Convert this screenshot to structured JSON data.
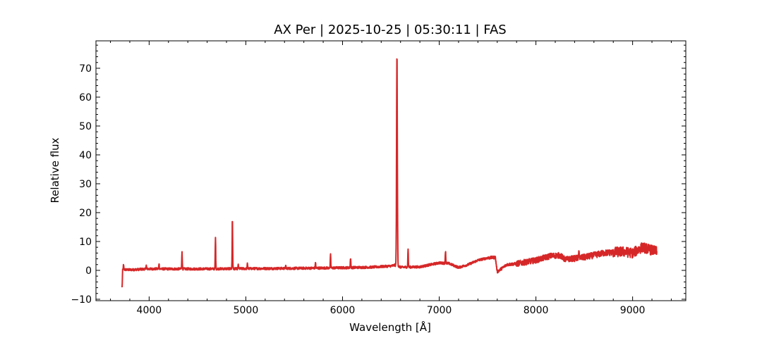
{
  "chart_data": {
    "type": "line",
    "title": "AX Per | 2025-10-25 | 05:30:11 | FAS",
    "xlabel": "Wavelength [Å]",
    "ylabel": "Relative flux",
    "xlim": [
      3450,
      9550
    ],
    "ylim": [
      -10.5,
      79.5
    ],
    "xticks": [
      4000,
      5000,
      6000,
      7000,
      8000,
      9000
    ],
    "yticks": [
      -10,
      0,
      10,
      20,
      30,
      40,
      50,
      60,
      70
    ],
    "xminor_step": 200,
    "yminor_step": 2,
    "grid": false,
    "line_color": "#d62728",
    "series": [
      {
        "name": "",
        "continuum": [
          [
            3720,
            0.3
          ],
          [
            3800,
            0.2
          ],
          [
            4000,
            0.5
          ],
          [
            4500,
            0.5
          ],
          [
            5000,
            0.6
          ],
          [
            5500,
            0.7
          ],
          [
            6000,
            0.9
          ],
          [
            6300,
            1.1
          ],
          [
            6500,
            1.5
          ],
          [
            6540,
            1.8
          ],
          [
            6600,
            1.1
          ],
          [
            6800,
            1.2
          ],
          [
            7000,
            2.6
          ],
          [
            7100,
            2.4
          ],
          [
            7200,
            1.0
          ],
          [
            7300,
            2.0
          ],
          [
            7400,
            3.5
          ],
          [
            7500,
            4.3
          ],
          [
            7580,
            4.5
          ],
          [
            7600,
            -0.5
          ],
          [
            7700,
            2.0
          ],
          [
            7800,
            2.3
          ],
          [
            8000,
            3.5
          ],
          [
            8150,
            5.0
          ],
          [
            8250,
            5.2
          ],
          [
            8300,
            3.8
          ],
          [
            8500,
            4.5
          ],
          [
            8700,
            6.0
          ],
          [
            8900,
            6.5
          ],
          [
            9000,
            6.0
          ],
          [
            9100,
            8.0
          ],
          [
            9150,
            7.5
          ],
          [
            9250,
            6.5
          ]
        ],
        "lines": [
          [
            3720,
            -6.0
          ],
          [
            3735,
            1.8
          ],
          [
            3970,
            1.8
          ],
          [
            4102,
            2.5
          ],
          [
            4340,
            6.8
          ],
          [
            4686,
            11.2
          ],
          [
            4861,
            18.3
          ],
          [
            4922,
            2.0
          ],
          [
            5016,
            2.2
          ],
          [
            5412,
            1.5
          ],
          [
            5720,
            2.8
          ],
          [
            5876,
            5.4
          ],
          [
            6083,
            4.5
          ],
          [
            6563,
            75.3
          ],
          [
            6678,
            7.3
          ],
          [
            7065,
            6.8
          ],
          [
            8446,
            7.5
          ]
        ],
        "noise": [
          [
            3720,
            7500,
            0.8
          ],
          [
            7500,
            7800,
            1.0
          ],
          [
            7800,
            8400,
            2.0
          ],
          [
            8400,
            8800,
            2.2
          ],
          [
            8800,
            9250,
            3.5
          ]
        ]
      }
    ]
  }
}
